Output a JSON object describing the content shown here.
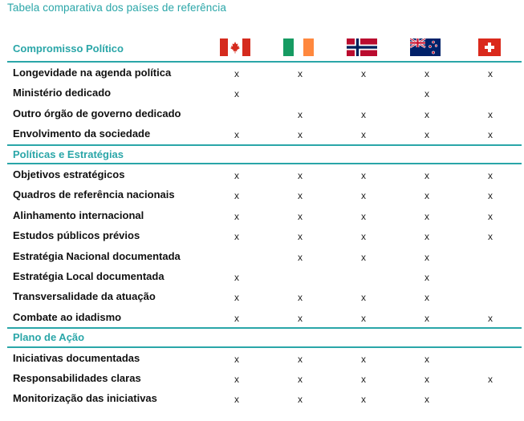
{
  "caption": "Tabela comparativa dos países de referência",
  "countries": [
    {
      "icon": "canada-flag-icon"
    },
    {
      "icon": "ireland-flag-icon"
    },
    {
      "icon": "norway-flag-icon"
    },
    {
      "icon": "new-zealand-flag-icon"
    },
    {
      "icon": "switzerland-flag-icon"
    }
  ],
  "colors": {
    "accent": "#2aa6a8",
    "text": "#111111"
  },
  "sections": [
    {
      "title": "Compromisso Político",
      "rows": [
        {
          "label": "Longevidade na agenda política",
          "marks": [
            "x",
            "x",
            "x",
            "x",
            "x"
          ]
        },
        {
          "label": "Ministério dedicado",
          "marks": [
            "x",
            "",
            "",
            "x",
            ""
          ]
        },
        {
          "label": "Outro órgão de governo dedicado",
          "marks": [
            "",
            "x",
            "x",
            "x",
            "x"
          ]
        },
        {
          "label": "Envolvimento da sociedade",
          "marks": [
            "x",
            "x",
            "x",
            "x",
            "x"
          ]
        }
      ]
    },
    {
      "title": "Políticas e Estratégias",
      "rows": [
        {
          "label": "Objetivos estratégicos",
          "marks": [
            "x",
            "x",
            "x",
            "x",
            "x"
          ]
        },
        {
          "label": "Quadros de referência nacionais",
          "marks": [
            "x",
            "x",
            "x",
            "x",
            "x"
          ]
        },
        {
          "label": "Alinhamento internacional",
          "marks": [
            "x",
            "x",
            "x",
            "x",
            "x"
          ]
        },
        {
          "label": "Estudos públicos prévios",
          "marks": [
            "x",
            "x",
            "x",
            "x",
            "x"
          ]
        },
        {
          "label": "Estratégia Nacional documentada",
          "marks": [
            "",
            "x",
            "x",
            "x",
            ""
          ]
        },
        {
          "label": "Estratégia Local documentada",
          "marks": [
            "x",
            "",
            "",
            "x",
            ""
          ]
        },
        {
          "label": "Transversalidade da atuação",
          "marks": [
            "x",
            "x",
            "x",
            "x",
            ""
          ]
        },
        {
          "label": "Combate ao idadismo",
          "marks": [
            "x",
            "x",
            "x",
            "x",
            "x"
          ]
        }
      ]
    },
    {
      "title": "Plano de Ação",
      "rows": [
        {
          "label": "Iniciativas documentadas",
          "marks": [
            "x",
            "x",
            "x",
            "x",
            ""
          ]
        },
        {
          "label": "Responsabilidades claras",
          "marks": [
            "x",
            "x",
            "x",
            "x",
            "x"
          ]
        },
        {
          "label": "Monitorização das iniciativas",
          "marks": [
            "x",
            "x",
            "x",
            "x",
            ""
          ]
        }
      ]
    }
  ]
}
